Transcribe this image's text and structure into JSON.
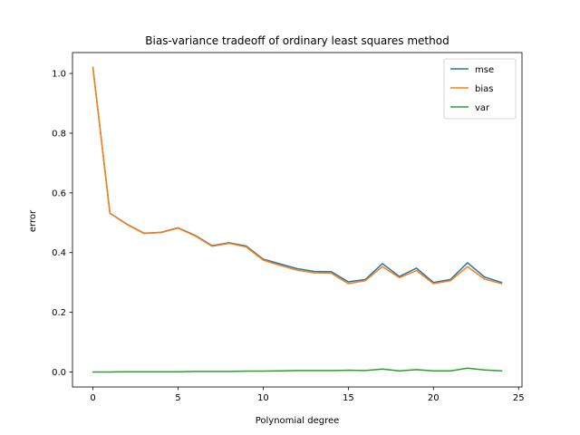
{
  "chart_data": {
    "type": "line",
    "title": "Bias-variance tradeoff of ordinary least squares method",
    "xlabel": "Polynomial degree",
    "ylabel": "error",
    "xlim": [
      -1.2,
      25.2
    ],
    "ylim": [
      -0.05,
      1.07
    ],
    "xticks": [
      0,
      5,
      10,
      15,
      20,
      25
    ],
    "yticks": [
      0.0,
      0.2,
      0.4,
      0.6,
      0.8,
      1.0
    ],
    "xtick_labels": [
      "0",
      "5",
      "10",
      "15",
      "20",
      "25"
    ],
    "ytick_labels": [
      "0.0",
      "0.2",
      "0.4",
      "0.6",
      "0.8",
      "1.0"
    ],
    "legend_position": "top-right",
    "grid": false,
    "x": [
      0,
      1,
      2,
      3,
      4,
      5,
      6,
      7,
      8,
      9,
      10,
      11,
      12,
      13,
      14,
      15,
      16,
      17,
      18,
      19,
      20,
      21,
      22,
      23,
      24
    ],
    "series": [
      {
        "name": "mse",
        "color": "#1f77b4",
        "values": [
          1.02,
          0.532,
          0.495,
          0.465,
          0.468,
          0.483,
          0.458,
          0.423,
          0.433,
          0.422,
          0.378,
          0.362,
          0.346,
          0.337,
          0.336,
          0.302,
          0.31,
          0.363,
          0.32,
          0.348,
          0.3,
          0.31,
          0.366,
          0.318,
          0.3
        ]
      },
      {
        "name": "bias",
        "color": "#ff7f0e",
        "values": [
          1.02,
          0.532,
          0.494,
          0.464,
          0.467,
          0.482,
          0.456,
          0.421,
          0.431,
          0.419,
          0.375,
          0.357,
          0.341,
          0.332,
          0.331,
          0.296,
          0.306,
          0.353,
          0.316,
          0.34,
          0.296,
          0.306,
          0.353,
          0.311,
          0.296
        ]
      },
      {
        "name": "var",
        "color": "#2ca02c",
        "values": [
          0.0,
          0.0,
          0.001,
          0.001,
          0.001,
          0.001,
          0.002,
          0.002,
          0.002,
          0.003,
          0.003,
          0.004,
          0.005,
          0.005,
          0.005,
          0.006,
          0.005,
          0.01,
          0.004,
          0.008,
          0.004,
          0.004,
          0.013,
          0.007,
          0.004
        ]
      }
    ]
  }
}
